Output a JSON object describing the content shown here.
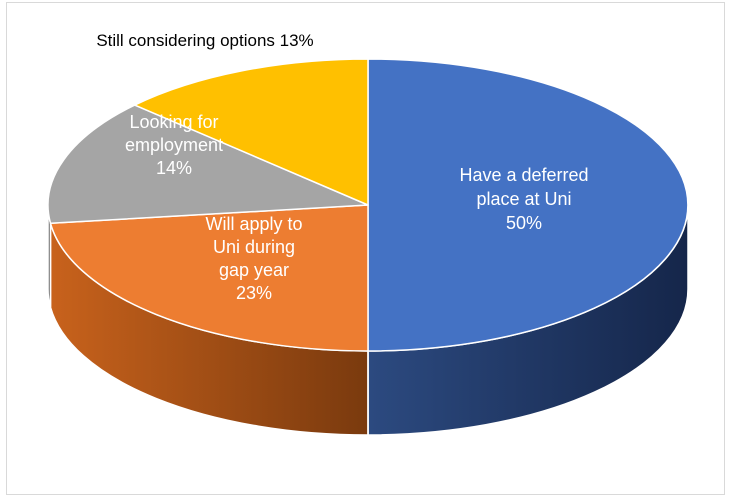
{
  "chart_data": {
    "type": "pie",
    "style": "3d",
    "title": "",
    "slices": [
      {
        "label_lines": [
          "Have a deferred",
          "place at Uni"
        ],
        "value_label": "50%",
        "value": 50,
        "color": "#4472C4",
        "side_color": "#203864",
        "label_color": "#ffffff",
        "label_position": "inside"
      },
      {
        "label_lines": [
          "Will apply to",
          "Uni during",
          "gap year"
        ],
        "value_label": "23%",
        "value": 23,
        "color": "#ED7D31",
        "side_color": "#9E4A12",
        "label_color": "#ffffff",
        "label_position": "inside"
      },
      {
        "label_lines": [
          "Looking for",
          "employment"
        ],
        "value_label": "14%",
        "value": 14,
        "color": "#A5A5A5",
        "side_color": "#6E6E6E",
        "label_color": "#ffffff",
        "label_position": "inside"
      },
      {
        "label_lines": [
          "Still considering options 13%"
        ],
        "value_label": "",
        "value": 13,
        "color": "#FFC000",
        "side_color": "#B38600",
        "label_color": "#000000",
        "label_position": "outside"
      }
    ]
  }
}
